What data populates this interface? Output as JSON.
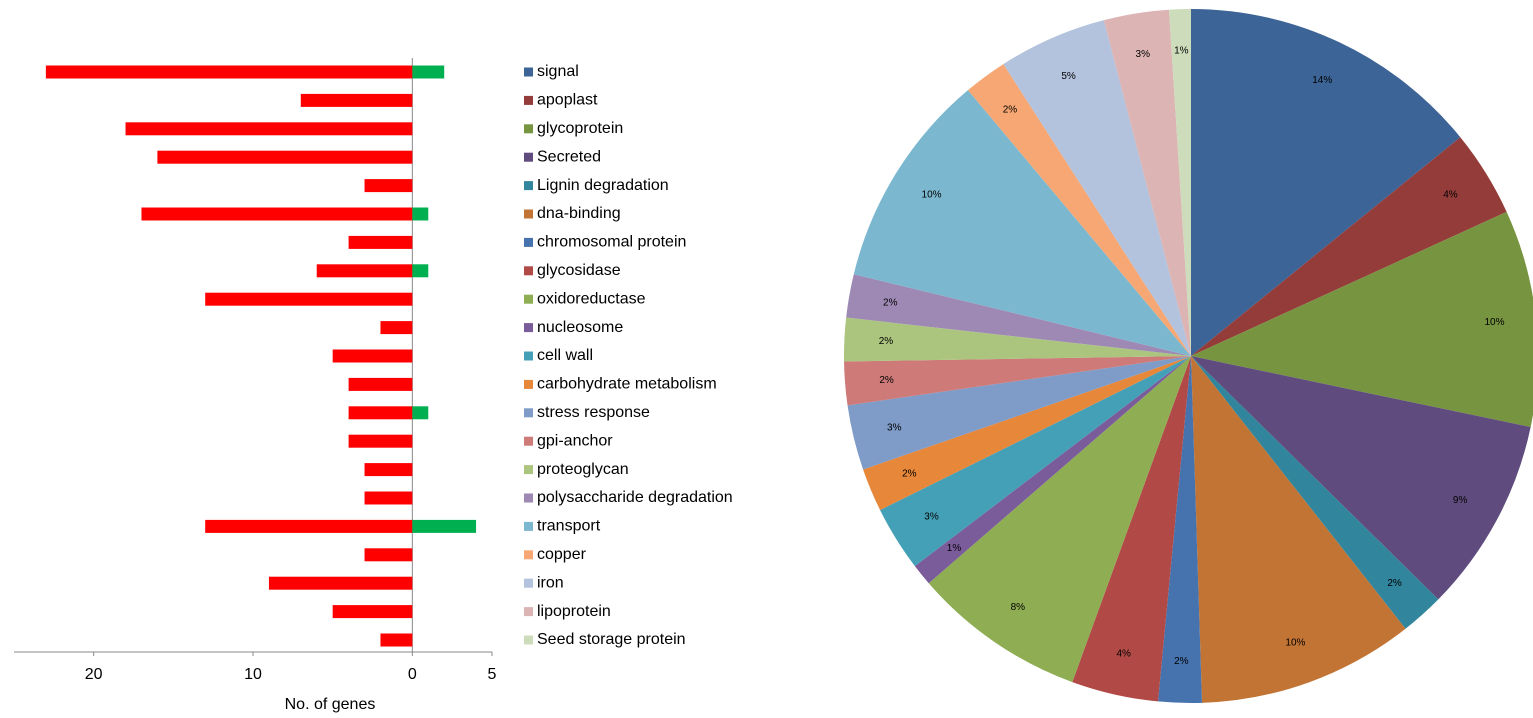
{
  "chart_data": [
    {
      "type": "hbar-diverging",
      "x_label": "No. of genes",
      "xlim": [
        -25,
        5
      ],
      "xticks": [
        {
          "value": -20,
          "label": "20"
        },
        {
          "value": -10,
          "label": "10"
        },
        0,
        5
      ],
      "series": [
        {
          "color": "#ff0000",
          "values": [
            -23,
            -7,
            -18,
            -16,
            -3,
            -17,
            -4,
            -6,
            -13,
            -2,
            -5,
            -4,
            -4,
            -4,
            -3,
            -3,
            -13,
            -3,
            -9,
            -5,
            -2
          ]
        },
        {
          "color": "#00b050",
          "values": [
            2,
            0,
            0,
            0,
            0,
            1,
            0,
            1,
            0,
            0,
            0,
            0,
            1,
            0,
            0,
            0,
            4,
            0,
            0,
            0,
            0
          ]
        }
      ]
    },
    {
      "type": "pie",
      "categories": [
        "signal",
        "apoplast",
        "glycoprotein",
        "Secreted",
        "Lignin degradation",
        "dna-binding",
        "chromosomal protein",
        "glycosidase",
        "oxidoreductase",
        "nucleosome",
        "cell wall",
        "carbohydrate metabolism",
        "stress response",
        "gpi-anchor",
        "proteoglycan",
        "polysaccharide degradation",
        "transport",
        "copper",
        "iron",
        "lipoprotein",
        "Seed storage protein"
      ],
      "values": [
        14,
        4,
        10,
        9,
        2,
        10,
        2,
        4,
        8,
        1,
        3,
        2,
        3,
        2,
        2,
        2,
        10,
        2,
        5,
        3,
        1
      ],
      "value_labels": [
        "14%",
        "4%",
        "10%",
        "9%",
        "2%",
        "10%",
        "2%",
        "4%",
        "8%",
        "1%",
        "3%",
        "2%",
        "3%",
        "2%",
        "2%",
        "2%",
        "10%",
        "2%",
        "5%",
        "3%",
        "1%"
      ],
      "colors": [
        "#3c6496",
        "#943c3a",
        "#779441",
        "#5f4b7d",
        "#31859c",
        "#c27434",
        "#4673ae",
        "#b14a47",
        "#8fad53",
        "#7a5c9b",
        "#44a0b7",
        "#e6873a",
        "#7f9bc8",
        "#cd7a78",
        "#abc57e",
        "#9e89b5",
        "#7bb8cf",
        "#f6a773",
        "#b3c2dd",
        "#dcb4b4",
        "#cddcbb"
      ]
    }
  ]
}
